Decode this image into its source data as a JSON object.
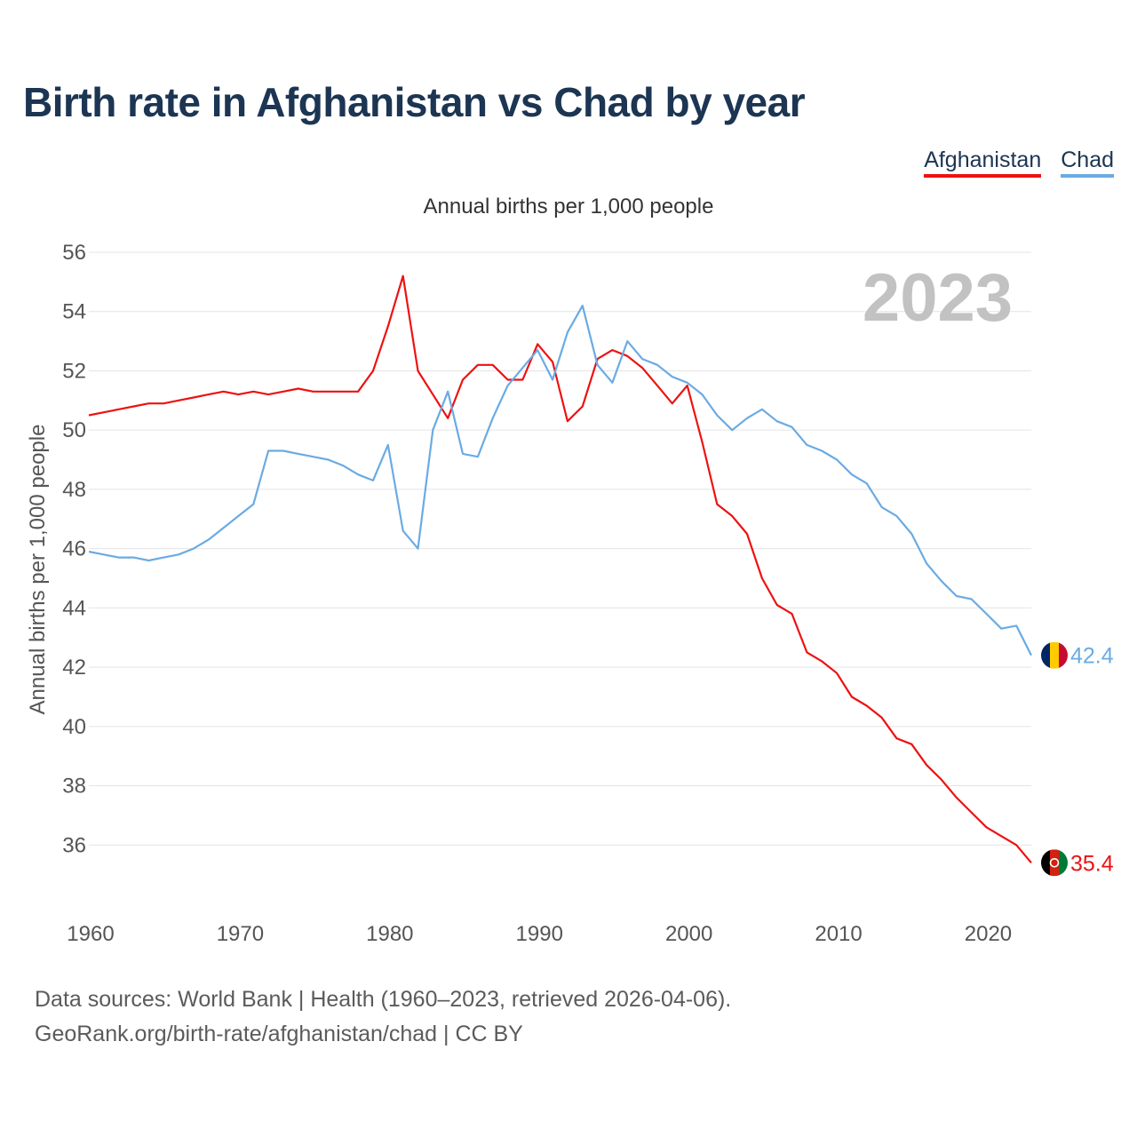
{
  "title": "Birth rate in Afghanistan vs Chad by year",
  "legend": [
    {
      "name": "Afghanistan",
      "color": "#ee1111"
    },
    {
      "name": "Chad",
      "color": "#6aabe3"
    }
  ],
  "sources": {
    "line1": "Data sources: World Bank | Health (1960–2023, retrieved 2026-04-06).",
    "line2": "GeoRank.org/birth-rate/afghanistan/chad | CC BY"
  },
  "chart_data": {
    "type": "line",
    "title": "Birth rate in Afghanistan vs Chad by year",
    "subtitle": "Annual births per 1,000 people",
    "ylabel": "Annual births per 1,000 people",
    "xlabel": "",
    "year_watermark": "2023",
    "xlim": [
      1960,
      2023
    ],
    "ylim": [
      34,
      56
    ],
    "x_ticks": [
      1960,
      1970,
      1980,
      1990,
      2000,
      2010,
      2020
    ],
    "y_ticks": [
      36,
      38,
      40,
      42,
      44,
      46,
      48,
      50,
      52,
      54,
      56
    ],
    "grid": true,
    "x": [
      1960,
      1961,
      1962,
      1963,
      1964,
      1965,
      1966,
      1967,
      1968,
      1969,
      1970,
      1971,
      1972,
      1973,
      1974,
      1975,
      1976,
      1977,
      1978,
      1979,
      1980,
      1981,
      1982,
      1983,
      1984,
      1985,
      1986,
      1987,
      1988,
      1989,
      1990,
      1991,
      1992,
      1993,
      1994,
      1995,
      1996,
      1997,
      1998,
      1999,
      2000,
      2001,
      2002,
      2003,
      2004,
      2005,
      2006,
      2007,
      2008,
      2009,
      2010,
      2011,
      2012,
      2013,
      2014,
      2015,
      2016,
      2017,
      2018,
      2019,
      2020,
      2021,
      2022,
      2023
    ],
    "series": [
      {
        "name": "Afghanistan",
        "color": "#ee1111",
        "end_label": "35.4",
        "values": [
          50.5,
          50.6,
          50.7,
          50.8,
          50.9,
          50.9,
          51.0,
          51.1,
          51.2,
          51.3,
          51.2,
          51.3,
          51.2,
          51.3,
          51.4,
          51.3,
          51.3,
          51.3,
          51.3,
          52.0,
          53.5,
          55.2,
          52.0,
          51.2,
          50.4,
          51.7,
          52.2,
          52.2,
          51.7,
          51.7,
          52.9,
          52.3,
          50.3,
          50.8,
          52.4,
          52.7,
          52.5,
          52.1,
          51.5,
          50.9,
          51.5,
          49.6,
          47.5,
          47.1,
          46.5,
          45.0,
          44.1,
          43.8,
          42.5,
          42.2,
          41.8,
          41.0,
          40.7,
          40.3,
          39.6,
          39.4,
          38.7,
          38.2,
          37.6,
          37.1,
          36.6,
          36.3,
          36.0,
          35.4
        ]
      },
      {
        "name": "Chad",
        "color": "#6aabe3",
        "end_label": "42.4",
        "values": [
          45.9,
          45.8,
          45.7,
          45.7,
          45.6,
          45.7,
          45.8,
          46.0,
          46.3,
          46.7,
          47.1,
          47.5,
          49.3,
          49.3,
          49.2,
          49.1,
          49.0,
          48.8,
          48.5,
          48.3,
          49.5,
          46.6,
          46.0,
          50.0,
          51.3,
          49.2,
          49.1,
          50.4,
          51.5,
          52.1,
          52.7,
          51.7,
          53.3,
          54.2,
          52.2,
          51.6,
          53.0,
          52.4,
          52.2,
          51.8,
          51.6,
          51.2,
          50.5,
          50.0,
          50.4,
          50.7,
          50.3,
          50.1,
          49.5,
          49.3,
          49.0,
          48.5,
          48.2,
          47.4,
          47.1,
          46.5,
          45.5,
          44.9,
          44.4,
          44.3,
          43.8,
          43.3,
          43.4,
          42.4
        ]
      }
    ]
  }
}
